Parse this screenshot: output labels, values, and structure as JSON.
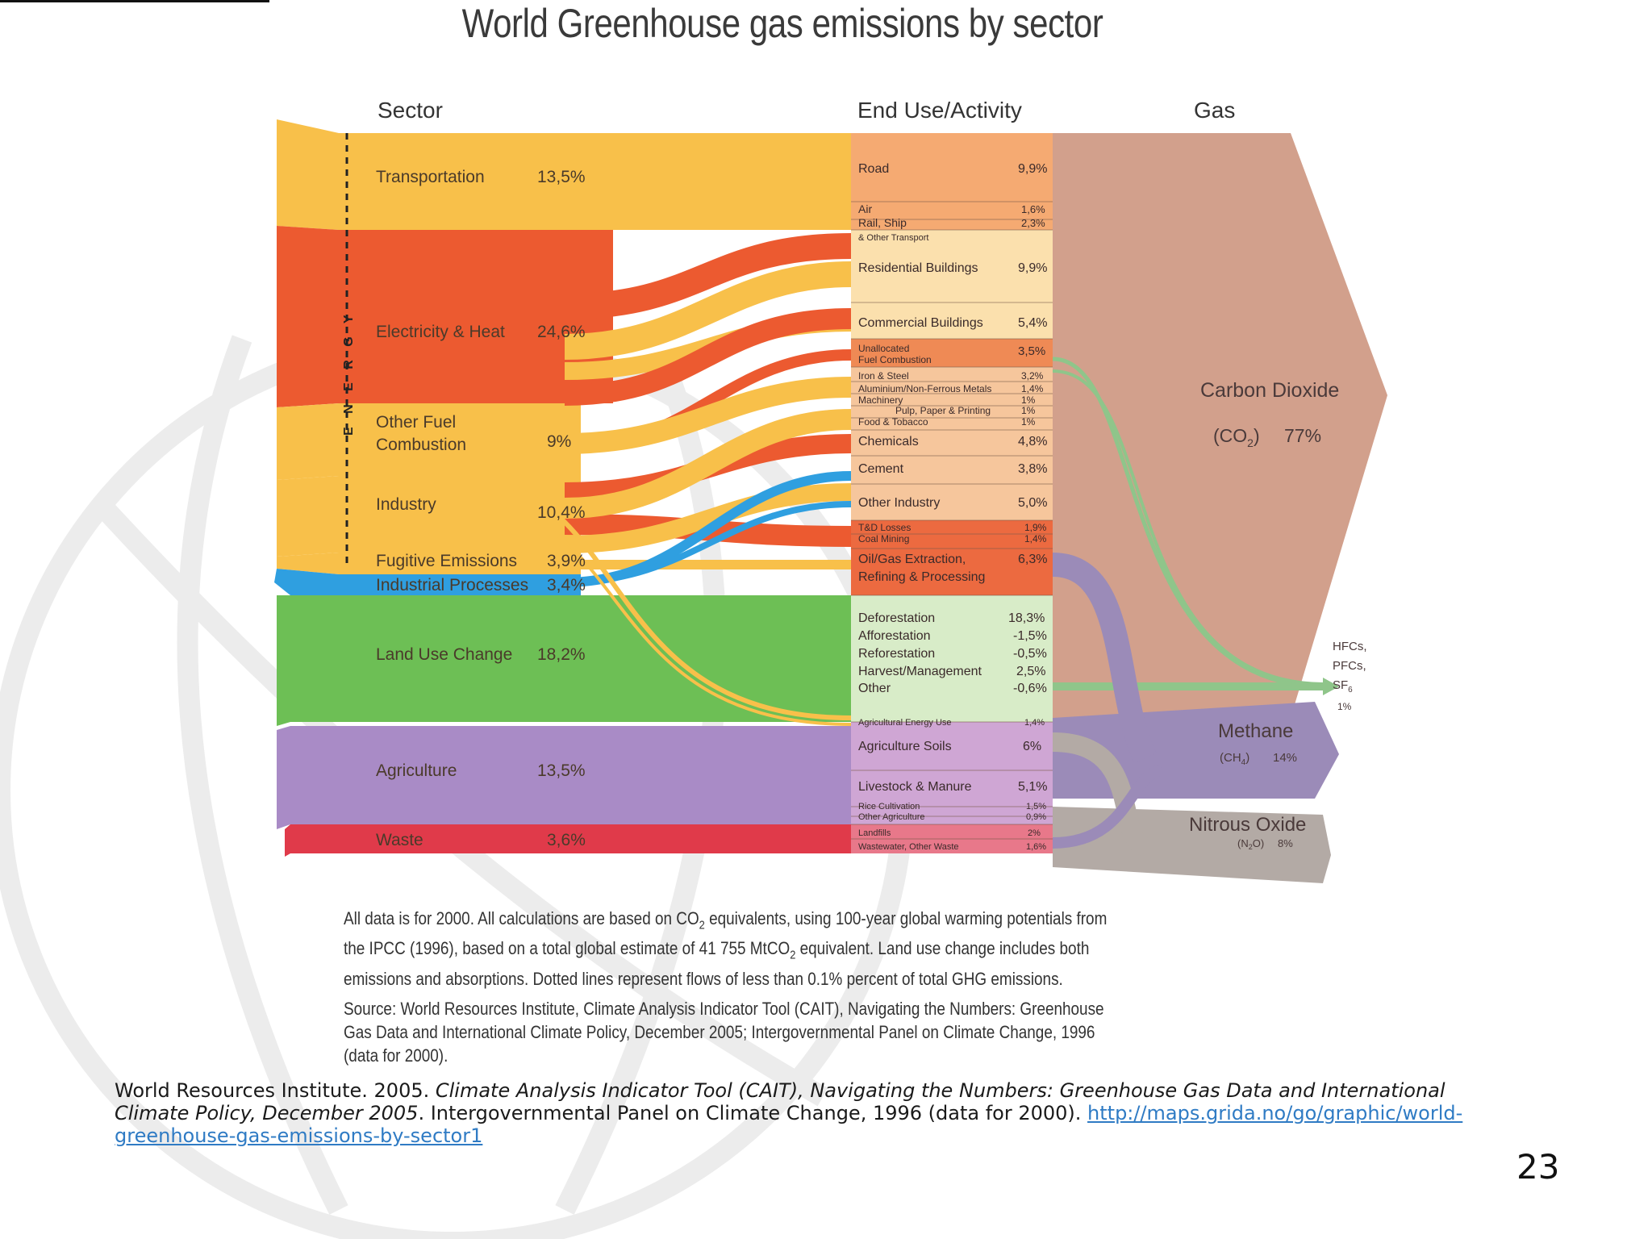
{
  "slide": {
    "title": "World Greenhouse gas emissions by sector",
    "page_number": "23"
  },
  "headers": {
    "sector": "Sector",
    "end_use": "End Use/Activity",
    "gas": "Gas"
  },
  "energy_label": "E N E R G Y",
  "sectors": [
    {
      "name": "Transportation",
      "value": "13,5%",
      "color": "#f8c04a"
    },
    {
      "name": "Electricity & Heat",
      "value": "24,6%",
      "color": "#ec5a30"
    },
    {
      "name": "Other Fuel",
      "name2": "Combustion",
      "value": "9%",
      "color": "#f8c04a"
    },
    {
      "name": "Industry",
      "value": "10,4%",
      "color": "#f8c04a"
    },
    {
      "name": "Fugitive Emissions",
      "value": "3,9%",
      "color": "#f8c04a"
    },
    {
      "name": "Industrial Processes",
      "value": "3,4%",
      "color": "#2f9fe0"
    },
    {
      "name": "Land Use Change",
      "value": "18,2%",
      "color": "#6dbf55"
    },
    {
      "name": "Agriculture",
      "value": "13,5%",
      "color": "#a98bc6"
    },
    {
      "name": "Waste",
      "value": "3,6%",
      "color": "#e03a4a"
    }
  ],
  "end_uses": [
    {
      "label": "Road",
      "value": "9,9%"
    },
    {
      "label": "Air",
      "value": "1,6%"
    },
    {
      "label": "Rail, Ship",
      "value": "2,3%"
    },
    {
      "label": "& Other Transport",
      "value": ""
    },
    {
      "label": "Residential Buildings",
      "value": "9,9%"
    },
    {
      "label": "Commercial Buildings",
      "value": "5,4%"
    },
    {
      "label": "Unallocated",
      "value": "3,5%"
    },
    {
      "label": "Fuel Combustion",
      "value": ""
    },
    {
      "label": "Iron & Steel",
      "value": "3,2%"
    },
    {
      "label": "Aluminium/Non-Ferrous Metals",
      "value": "1,4%"
    },
    {
      "label": "Machinery",
      "value": "1%"
    },
    {
      "label": "Pulp, Paper & Printing",
      "value": "1%"
    },
    {
      "label": "Food & Tobacco",
      "value": "1%"
    },
    {
      "label": "Chemicals",
      "value": "4,8%"
    },
    {
      "label": "Cement",
      "value": "3,8%"
    },
    {
      "label": "Other Industry",
      "value": "5,0%"
    },
    {
      "label": "T&D Losses",
      "value": "1,9%"
    },
    {
      "label": "Coal Mining",
      "value": "1,4%"
    },
    {
      "label": "Oil/Gas Extraction,",
      "value": "6,3%"
    },
    {
      "label": "Refining & Processing",
      "value": ""
    },
    {
      "label": "Deforestation",
      "value": "18,3%"
    },
    {
      "label": "Afforestation",
      "value": "-1,5%"
    },
    {
      "label": "Reforestation",
      "value": "-0,5%"
    },
    {
      "label": "Harvest/Management",
      "value": "2,5%"
    },
    {
      "label": "Other",
      "value": "-0,6%"
    },
    {
      "label": "Agricultural Energy Use",
      "value": "1,4%"
    },
    {
      "label": "Agriculture Soils",
      "value": "6%"
    },
    {
      "label": "Livestock & Manure",
      "value": "5,1%"
    },
    {
      "label": "Rice Cultivation",
      "value": "1,5%"
    },
    {
      "label": "Other Agriculture",
      "value": "0,9%"
    },
    {
      "label": "Landfills",
      "value": "2%"
    },
    {
      "label": "Wastewater, Other Waste",
      "value": "1,6%"
    }
  ],
  "gases": [
    {
      "name": "Carbon Dioxide",
      "formula": "(CO",
      "sub": "2",
      "close": ")",
      "value": "77%",
      "color": "#d2a08c"
    },
    {
      "name": "Methane",
      "formula": "(CH",
      "sub": "4",
      "close": ")",
      "value": "14%",
      "color": "#9b8bb8"
    },
    {
      "name": "Nitrous Oxide",
      "formula": "(N",
      "sub": "2",
      "close": "O)",
      "value": "8%",
      "color": "#b3aaa5"
    },
    {
      "name": "HFCs,",
      "name2": "PFCs,",
      "name3": "SF",
      "sub": "6",
      "value": "1%",
      "color": "#8fc58a"
    }
  ],
  "notes": {
    "line1_a": "All data is for 2000. All calculations are based on CO",
    "line1_sub": "2",
    "line1_b": " equivalents, using 100-year global warming potentials from",
    "line2_a": "the IPCC (1996), based on a total global estimate of 41 755 MtCO",
    "line2_sub": "2",
    "line2_b": " equivalent. Land use change includes both",
    "line3": "emissions and absorptions. Dotted lines represent flows of less than 0.1% percent of total GHG emissions.",
    "source": "Source: World Resources Institute, Climate Analysis Indicator Tool (CAIT), Navigating the Numbers: Greenhouse Gas Data and International Climate Policy, December 2005; Intergovernmental Panel on Climate Change, 1996 (data for 2000)."
  },
  "citation": {
    "prefix": "World Resources Institute. 2005. ",
    "italic": "Climate Analysis Indicator Tool (CAIT), Navigating the Numbers: Greenhouse Gas Data and International Climate Policy, December 2005",
    "suffix": ". Intergovernmental Panel on Climate Change, 1996 (data for 2000). ",
    "link": "http://maps.grida.no/go/graphic/world-greenhouse-gas-emissions-by-sector1"
  }
}
